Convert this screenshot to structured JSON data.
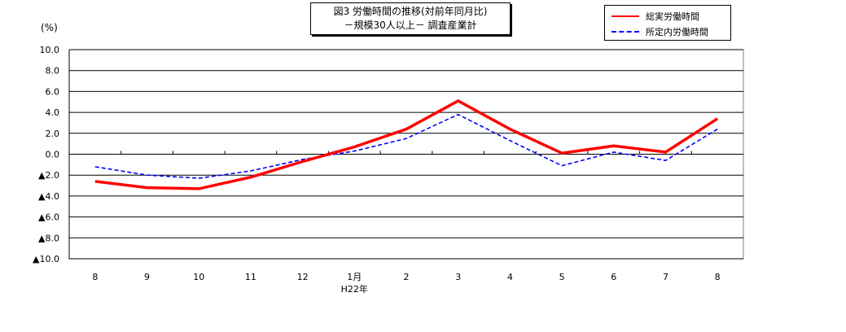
{
  "chart_data": {
    "type": "line",
    "title": [
      "図3 労働時間の推移(対前年同月比)",
      "－規模30人以上－ 調査産業計"
    ],
    "ylabel": "(%)",
    "xlabel": "",
    "categories": [
      "8",
      "9",
      "10",
      "11",
      "12",
      "1月",
      "2",
      "3",
      "4",
      "5",
      "6",
      "7",
      "8"
    ],
    "category_sublabel": {
      "index": 5,
      "text": "H22年"
    },
    "ylim": [
      -10,
      10
    ],
    "yticks": [
      10,
      8,
      6,
      4,
      2,
      0,
      -2,
      -4,
      -6,
      -8,
      -10
    ],
    "ytick_labels": [
      "10.0",
      "8.0",
      "6.0",
      "4.0",
      "2.0",
      "0.0",
      "▲2.0",
      "▲4.0",
      "▲6.0",
      "▲8.0",
      "▲10.0"
    ],
    "grid": true,
    "legend_position": "top-right",
    "series": [
      {
        "name": "総実労働時間",
        "color": "#ff0000",
        "style": "solid",
        "values": [
          -2.6,
          -3.2,
          -3.3,
          -2.2,
          -0.7,
          0.7,
          2.4,
          5.1,
          2.4,
          0.1,
          0.8,
          0.2,
          3.4
        ]
      },
      {
        "name": "所定内労働時間",
        "color": "#0000ff",
        "style": "dashed",
        "values": [
          -1.2,
          -2.0,
          -2.3,
          -1.6,
          -0.5,
          0.3,
          1.5,
          3.8,
          1.3,
          -1.1,
          0.2,
          -0.6,
          2.4
        ]
      }
    ]
  }
}
